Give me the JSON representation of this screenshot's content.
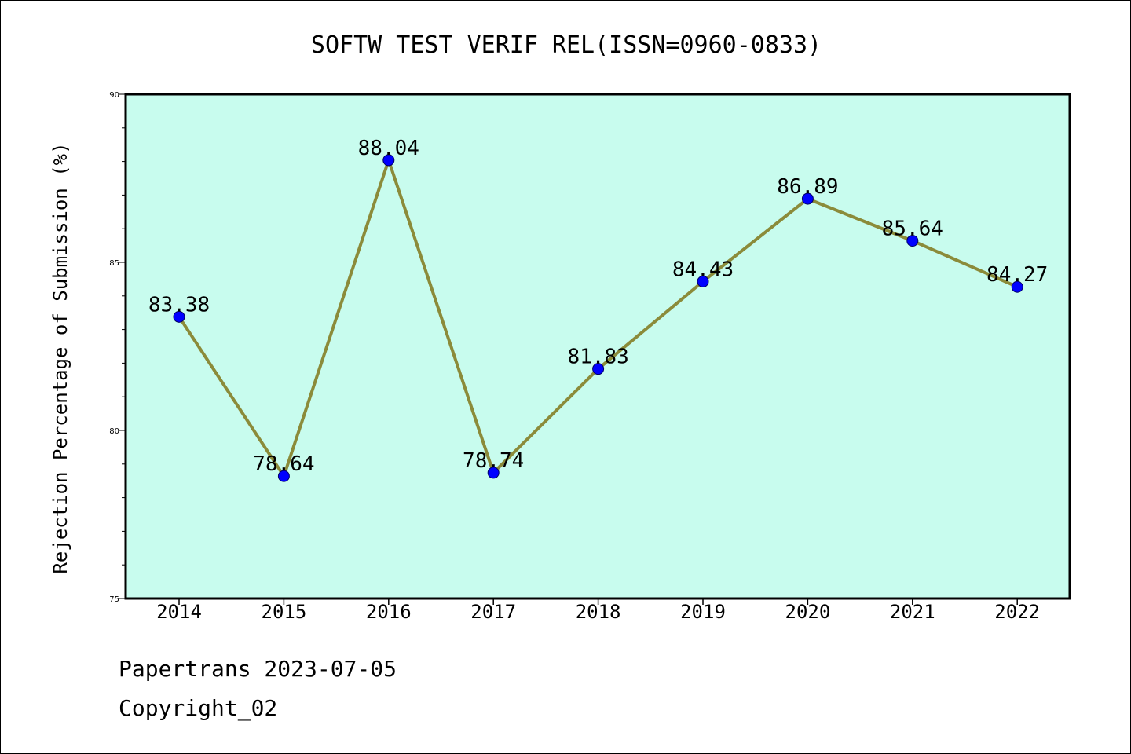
{
  "chart_data": {
    "type": "line",
    "title": "SOFTW TEST VERIF REL(ISSN=0960-0833)",
    "xlabel": "",
    "ylabel": "Rejection Percentage of Submission (%)",
    "categories": [
      "2014",
      "2015",
      "2016",
      "2017",
      "2018",
      "2019",
      "2020",
      "2021",
      "2022"
    ],
    "values": [
      83.38,
      78.64,
      88.04,
      78.74,
      81.83,
      84.43,
      86.89,
      85.64,
      84.27
    ],
    "data_labels": [
      "83.38",
      "78.64",
      "88.04",
      "78.74",
      "81.83",
      "84.43",
      "86.89",
      "85.64",
      "84.27"
    ],
    "ylim": [
      75,
      90
    ],
    "yticks": [
      75,
      80,
      85,
      90
    ],
    "ytick_labels": [
      "75",
      "80",
      "85",
      "90"
    ],
    "grid": false,
    "legend": "none",
    "colors": {
      "plot_background": "#c8fcee",
      "line": "#8b8b3a",
      "marker": "#0000ff"
    }
  },
  "footer": {
    "line1": "Papertrans 2023-07-05",
    "line2": "Copyright_02"
  }
}
